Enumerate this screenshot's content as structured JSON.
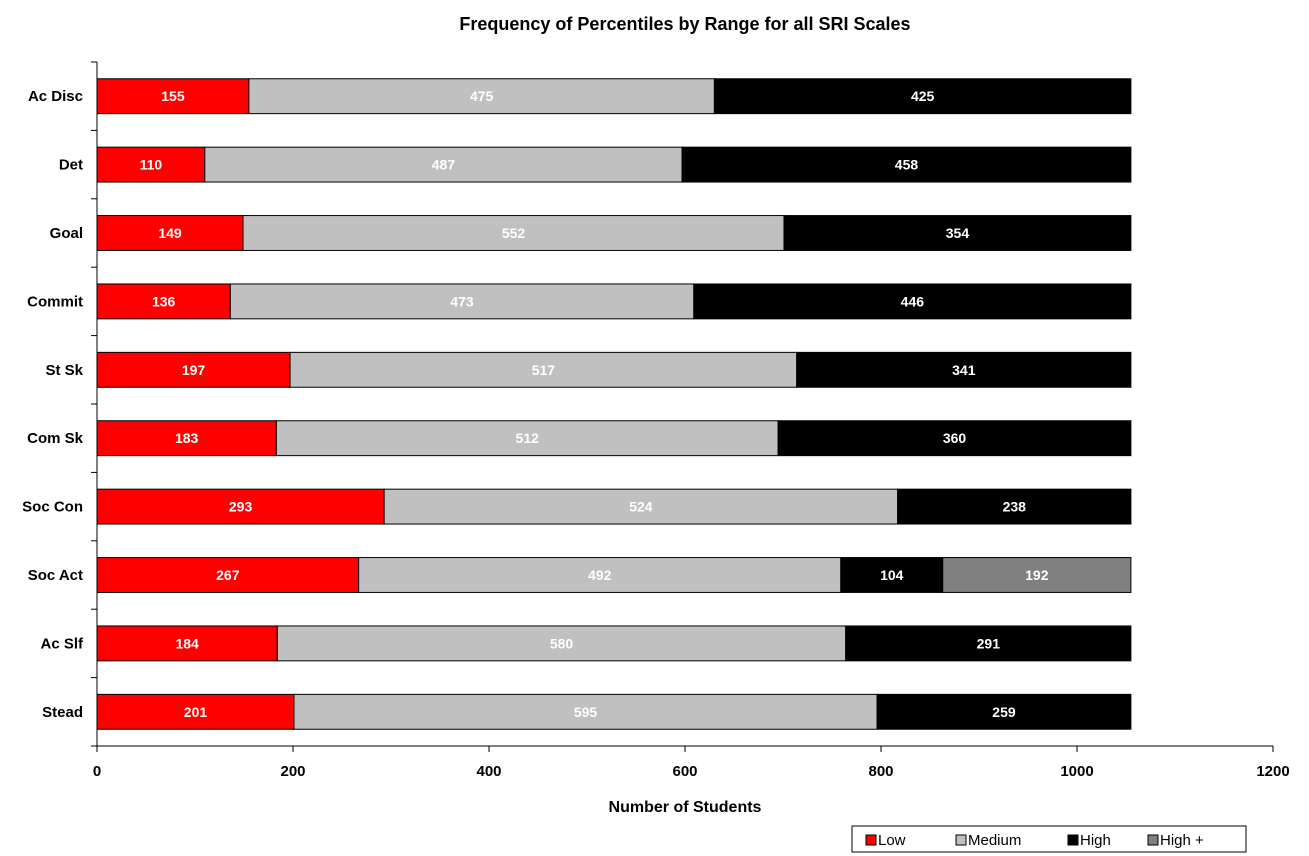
{
  "chart_data": {
    "type": "bar",
    "orientation": "horizontal",
    "stacked": true,
    "title": "Frequency of Percentiles by Range for all SRI Scales",
    "xlabel": "Number of Students",
    "ylabel": "",
    "xlim": [
      0,
      1200
    ],
    "xticks": [
      0,
      200,
      400,
      600,
      800,
      1000,
      1200
    ],
    "grid": false,
    "legend_position": "bottom-right",
    "categories": [
      "Ac Disc",
      "Det",
      "Goal",
      "Commit",
      "St Sk",
      "Com Sk",
      "Soc Con",
      "Soc Act",
      "Ac Slf",
      "Stead"
    ],
    "series": [
      {
        "name": "Low",
        "color": "#ff0000",
        "label_color": "#ffffff",
        "values": [
          155,
          110,
          149,
          136,
          197,
          183,
          293,
          267,
          184,
          201
        ]
      },
      {
        "name": "Medium",
        "color": "#c0c0c0",
        "label_color": "#ffffff",
        "values": [
          475,
          487,
          552,
          473,
          517,
          512,
          524,
          492,
          580,
          595
        ]
      },
      {
        "name": "High",
        "color": "#000000",
        "label_color": "#ffffff",
        "values": [
          425,
          458,
          354,
          446,
          341,
          360,
          238,
          104,
          291,
          259
        ]
      },
      {
        "name": "High +",
        "color": "#808080",
        "label_color": "#ffffff",
        "values": [
          0,
          0,
          0,
          0,
          0,
          0,
          0,
          192,
          0,
          0
        ]
      }
    ]
  }
}
